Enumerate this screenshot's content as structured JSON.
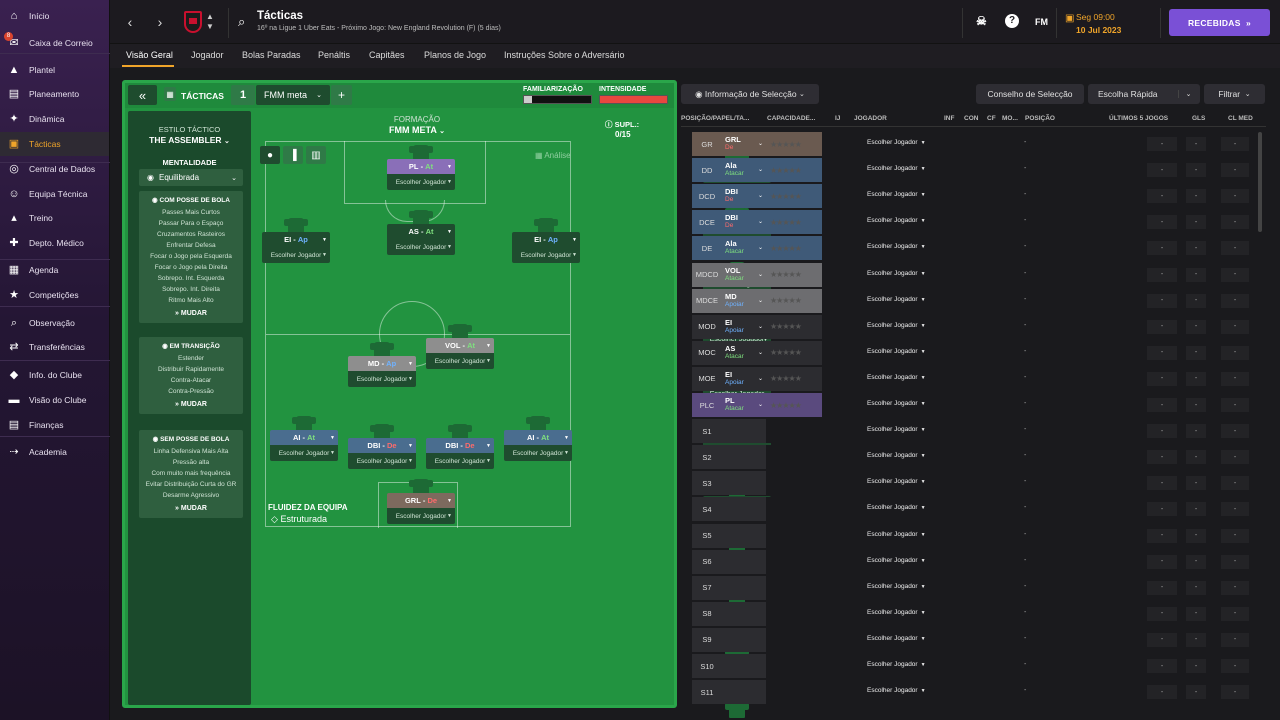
{
  "sidebar": {
    "items": [
      {
        "label": "Início",
        "icon": "home-icon"
      },
      {
        "label": "Caixa de Correio",
        "icon": "mail-icon",
        "badge": "8"
      },
      {
        "label": "Plantel",
        "icon": "shirt-icon"
      },
      {
        "label": "Planeamento",
        "icon": "clipboard-icon"
      },
      {
        "label": "Dinâmica",
        "icon": "dynamics-icon"
      },
      {
        "label": "Tácticas",
        "icon": "tactics-icon",
        "active": true
      },
      {
        "label": "Central de Dados",
        "icon": "data-icon"
      },
      {
        "label": "Equipa Técnica",
        "icon": "staff-icon"
      },
      {
        "label": "Treino",
        "icon": "training-icon"
      },
      {
        "label": "Depto. Médico",
        "icon": "medical-icon"
      },
      {
        "label": "Agenda",
        "icon": "calendar-icon"
      },
      {
        "label": "Competições",
        "icon": "trophy-icon"
      },
      {
        "label": "Observação",
        "icon": "scouting-icon"
      },
      {
        "label": "Transferências",
        "icon": "transfer-icon"
      },
      {
        "label": "Info. do Clube",
        "icon": "club-info-icon"
      },
      {
        "label": "Visão do Clube",
        "icon": "club-vision-icon"
      },
      {
        "label": "Finanças",
        "icon": "finance-icon"
      },
      {
        "label": "Academia",
        "icon": "academy-icon"
      }
    ]
  },
  "header": {
    "title": "Tácticas",
    "subtitle": "16º na Ligue 1 Uber Eats - Próximo Jogo: New England Revolution (F) (5 dias)",
    "date_line1": "Seg 09:00",
    "date_line2": "10 Jul 2023",
    "fm_label": "FM",
    "help": "?",
    "received_label": "RECEBIDAS"
  },
  "tabs": [
    "Visão Geral",
    "Jogador",
    "Bolas Paradas",
    "Penáltis",
    "Capitães",
    "Planos de Jogo",
    "Instruções Sobre o Adversário"
  ],
  "tactics": {
    "label": "TÁCTICAS",
    "slot": "1",
    "name": "FMM meta",
    "familiarity_label": "FAMILIARIZAÇÃO",
    "intensity_label": "INTENSIDADE",
    "formation_label": "FORMAÇÃO",
    "formation": "FMM META",
    "analysis": "Análise",
    "subs_label": "SUPL.:",
    "subs_count": "0/15",
    "fluidity_label": "FLUIDEZ DA EQUIPA",
    "fluidity": "Estruturada"
  },
  "style": {
    "label": "ESTILO TÁCTICO",
    "name": "THE ASSEMBLER",
    "mentality_label": "MENTALIDADE",
    "mentality": "Equilibrada",
    "boxes": [
      {
        "title": "COM POSSE DE BOLA",
        "lines": [
          "Passes Mais Curtos",
          "Passar Para o Espaço",
          "Cruzamentos Rasteiros",
          "Enfrentar Defesa",
          "Focar o Jogo pela Esquerda",
          "Focar o Jogo pela Direita",
          "Sobrepo. Int. Esquerda",
          "Sobrepo. Int. Direita",
          "Ritmo Mais Alto"
        ],
        "action": "MUDAR"
      },
      {
        "title": "EM TRANSIÇÃO",
        "lines": [
          "Estender",
          "Distribuir Rapidamente",
          "Contra-Atacar",
          "Contra-Pressão"
        ],
        "action": "MUDAR"
      },
      {
        "title": "SEM POSSE DE BOLA",
        "lines": [
          "Linha Defensiva Mais Alta",
          "Pressão alta",
          "Com muito mais frequência",
          "Evitar Distribuição Curta do GR",
          "Desarme Agressivo"
        ],
        "action": "MUDAR"
      }
    ]
  },
  "pitch": {
    "choose": "Escolher Jogador",
    "players": [
      {
        "pos": "PL",
        "duty": "At",
        "color": "#8a6fb8",
        "dcol": "#7fe07f"
      },
      {
        "pos": "EI",
        "duty": "Ap",
        "color": "#1f4c2f",
        "dcol": "#6fb2ff"
      },
      {
        "pos": "AS",
        "duty": "At",
        "color": "#1f4c2f",
        "dcol": "#7fe07f"
      },
      {
        "pos": "EI",
        "duty": "Ap",
        "color": "#1f4c2f",
        "dcol": "#6fb2ff"
      },
      {
        "pos": "VOL",
        "duty": "At",
        "color": "#8e8e8e",
        "dcol": "#7fe07f"
      },
      {
        "pos": "MD",
        "duty": "Ap",
        "color": "#8e8e8e",
        "dcol": "#6fb2ff"
      },
      {
        "pos": "AI",
        "duty": "At",
        "color": "#4a6d8f",
        "dcol": "#7fe07f"
      },
      {
        "pos": "DBI",
        "duty": "De",
        "color": "#4a6d8f",
        "dcol": "#ff6b6b"
      },
      {
        "pos": "DBI",
        "duty": "De",
        "color": "#4a6d8f",
        "dcol": "#ff6b6b"
      },
      {
        "pos": "AI",
        "duty": "At",
        "color": "#4a6d8f",
        "dcol": "#7fe07f"
      },
      {
        "pos": "GRL",
        "duty": "De",
        "color": "#7d6a5e",
        "dcol": "#ff6b6b"
      }
    ]
  },
  "right": {
    "info_btn": "Informação de Selecção",
    "advice_btn": "Conselho de Selecção",
    "quick_btn": "Escolha Rápida",
    "filter_btn": "Filtrar",
    "columns": [
      "POSIÇÃO/PAPEL/TA...",
      "CAPACIDADE...",
      "IJ",
      "JOGADOR",
      "INF",
      "CON",
      "CF",
      "MO...",
      "POSIÇÃO",
      "ÚLTIMOS 5 JOGOS",
      "GLS",
      "CL MED"
    ],
    "rows": [
      {
        "pos": "GR",
        "role": "GRL",
        "duty": "De",
        "dcol": "#ff6b6b",
        "bg": "#6a5a50"
      },
      {
        "pos": "DD",
        "role": "Ala",
        "duty": "Atacar",
        "dcol": "#7fe07f",
        "bg": "#3f5a78"
      },
      {
        "pos": "DCD",
        "role": "DBI",
        "duty": "De",
        "dcol": "#ff6b6b",
        "bg": "#3f5a78"
      },
      {
        "pos": "DCE",
        "role": "DBI",
        "duty": "De",
        "dcol": "#ff6b6b",
        "bg": "#3f5a78"
      },
      {
        "pos": "DE",
        "role": "Ala",
        "duty": "Atacar",
        "dcol": "#7fe07f",
        "bg": "#3f5a78"
      },
      {
        "pos": "MDCD",
        "role": "VOL",
        "duty": "Atacar",
        "dcol": "#7fe07f",
        "bg": "#6d6d70"
      },
      {
        "pos": "MDCE",
        "role": "MD",
        "duty": "Apoiar",
        "dcol": "#6fb2ff",
        "bg": "#6d6d70"
      },
      {
        "pos": "MOD",
        "role": "EI",
        "duty": "Apoiar",
        "dcol": "#6fb2ff",
        "bg": "#2c2c30"
      },
      {
        "pos": "MOC",
        "role": "AS",
        "duty": "Atacar",
        "dcol": "#7fe07f",
        "bg": "#2c2c30"
      },
      {
        "pos": "MOE",
        "role": "EI",
        "duty": "Apoiar",
        "dcol": "#6fb2ff",
        "bg": "#2c2c30"
      },
      {
        "pos": "PLC",
        "role": "PL",
        "duty": "Atacar",
        "dcol": "#7fe07f",
        "bg": "#5a4a7e"
      },
      {
        "pos": "S1"
      },
      {
        "pos": "S2"
      },
      {
        "pos": "S3"
      },
      {
        "pos": "S4"
      },
      {
        "pos": "S5"
      },
      {
        "pos": "S6"
      },
      {
        "pos": "S7"
      },
      {
        "pos": "S8"
      },
      {
        "pos": "S9"
      },
      {
        "pos": "S10"
      },
      {
        "pos": "S11"
      }
    ],
    "choose": "Escolher Jogador",
    "dash": "-"
  }
}
